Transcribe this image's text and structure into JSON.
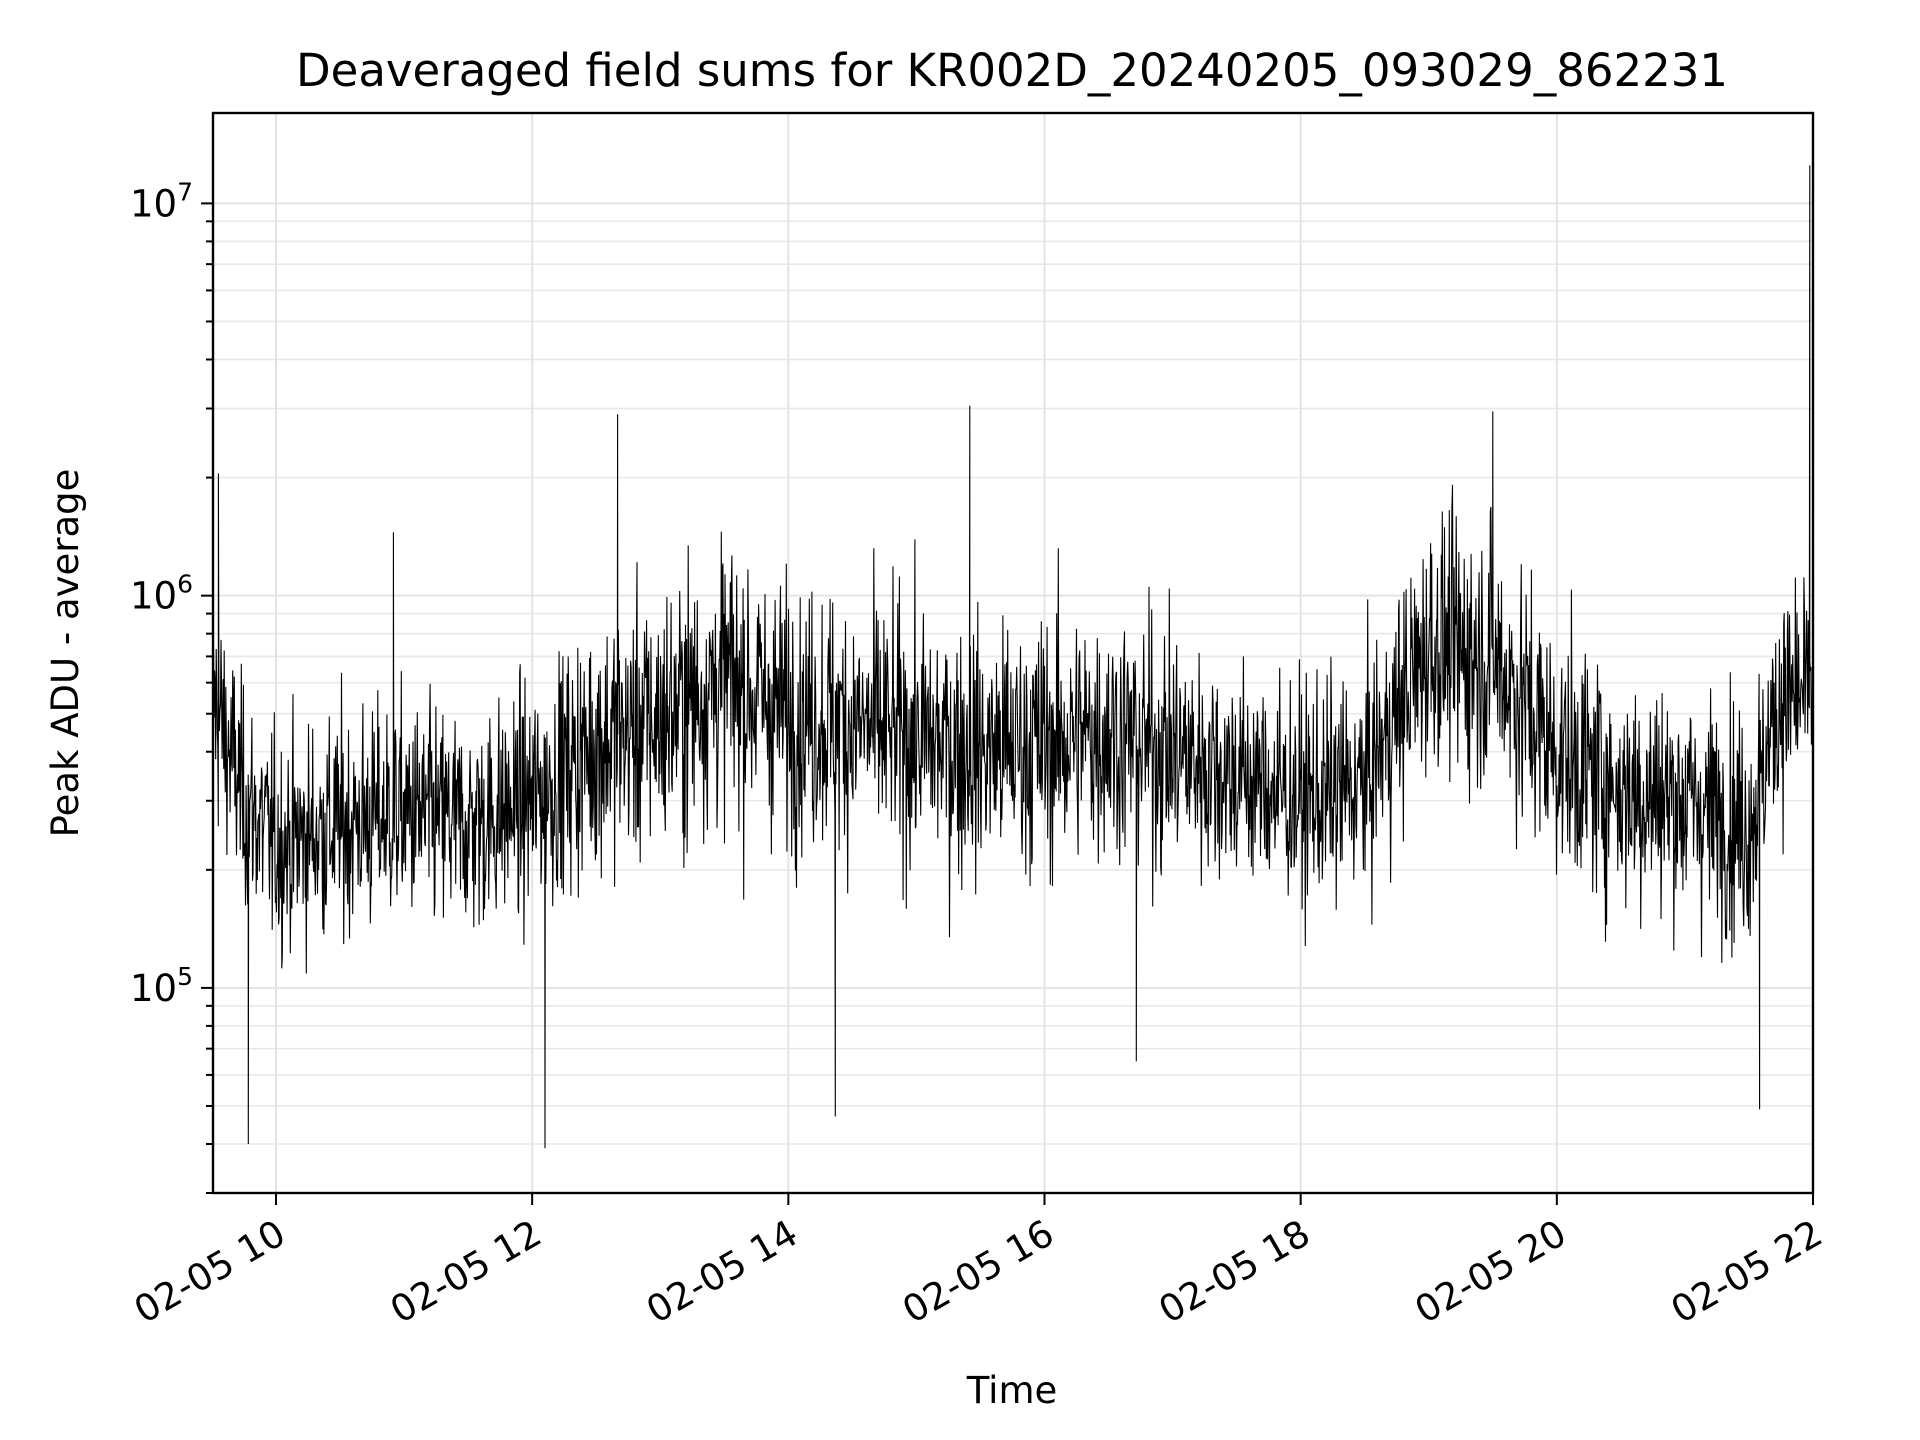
{
  "chart_data": {
    "type": "line",
    "title": "Deaveraged field sums for KR002D_20240205_093029_862231",
    "xlabel": "Time",
    "ylabel": "Peak ADU - average",
    "xscale": "time",
    "yscale": "log",
    "xlim": [
      "2024-02-05T09:30:29",
      "2024-02-05T22:00:00"
    ],
    "ylim": [
      30000,
      17000000
    ],
    "grid": true,
    "x_ticks": [
      {
        "value": "2024-02-05T10:00:00",
        "label": "02-05 10"
      },
      {
        "value": "2024-02-05T12:00:00",
        "label": "02-05 12"
      },
      {
        "value": "2024-02-05T14:00:00",
        "label": "02-05 14"
      },
      {
        "value": "2024-02-05T16:00:00",
        "label": "02-05 16"
      },
      {
        "value": "2024-02-05T18:00:00",
        "label": "02-05 18"
      },
      {
        "value": "2024-02-05T20:00:00",
        "label": "02-05 20"
      },
      {
        "value": "2024-02-05T22:00:00",
        "label": "02-05 22"
      }
    ],
    "y_ticks": [
      {
        "value": 100000,
        "base": "10",
        "exp": "5"
      },
      {
        "value": 1000000,
        "base": "10",
        "exp": "6"
      },
      {
        "value": 10000000,
        "base": "10",
        "exp": "7"
      }
    ],
    "series": [
      {
        "color": "#000000",
        "x": [
          "2024-02-05T09:30:29",
          "2024-02-05T09:45:00",
          "2024-02-05T10:00:00",
          "2024-02-05T10:30:00",
          "2024-02-05T11:00:00",
          "2024-02-05T11:30:00",
          "2024-02-05T12:00:00",
          "2024-02-05T12:30:00",
          "2024-02-05T13:00:00",
          "2024-02-05T13:30:00",
          "2024-02-05T14:00:00",
          "2024-02-05T14:30:00",
          "2024-02-05T15:00:00",
          "2024-02-05T15:30:00",
          "2024-02-05T16:00:00",
          "2024-02-05T16:30:00",
          "2024-02-05T17:00:00",
          "2024-02-05T17:30:00",
          "2024-02-05T18:00:00",
          "2024-02-05T18:30:00",
          "2024-02-05T19:00:00",
          "2024-02-05T19:30:00",
          "2024-02-05T20:00:00",
          "2024-02-05T20:30:00",
          "2024-02-05T21:00:00",
          "2024-02-05T21:30:00",
          "2024-02-05T21:45:00",
          "2024-02-05T22:00:00"
        ],
        "y": [
          550000,
          300000,
          230000,
          260000,
          280000,
          260000,
          300000,
          420000,
          480000,
          620000,
          500000,
          470000,
          430000,
          400000,
          420000,
          450000,
          400000,
          350000,
          300000,
          330000,
          750000,
          700000,
          400000,
          320000,
          300000,
          260000,
          550000,
          550000
        ],
        "spread_factor": [
          2.4,
          2.2,
          2.2,
          2.3,
          2.3,
          2.3,
          2.3,
          2.6,
          2.7,
          2.8,
          2.6,
          2.6,
          2.6,
          2.6,
          2.6,
          2.6,
          2.5,
          2.3,
          2.3,
          2.3,
          2.6,
          2.7,
          2.5,
          2.4,
          2.4,
          2.4,
          2.3,
          2.3
        ],
        "extremes": [
          {
            "x": "2024-02-05T09:33:00",
            "y": 2050000
          },
          {
            "x": "2024-02-05T09:47:00",
            "y": 40000
          },
          {
            "x": "2024-02-05T10:55:00",
            "y": 1450000
          },
          {
            "x": "2024-02-05T12:06:00",
            "y": 39000
          },
          {
            "x": "2024-02-05T12:40:00",
            "y": 2900000
          },
          {
            "x": "2024-02-05T14:22:00",
            "y": 47000
          },
          {
            "x": "2024-02-05T15:25:00",
            "y": 3050000
          },
          {
            "x": "2024-02-05T16:43:00",
            "y": 65000
          },
          {
            "x": "2024-02-05T19:30:00",
            "y": 2950000
          },
          {
            "x": "2024-02-05T21:35:00",
            "y": 49000
          },
          {
            "x": "2024-02-05T21:58:30",
            "y": 12500000
          }
        ]
      }
    ]
  }
}
